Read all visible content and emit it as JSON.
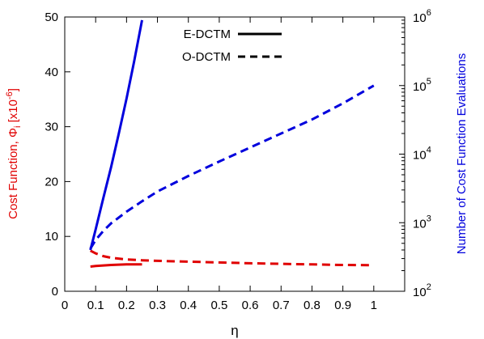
{
  "chart_data": {
    "type": "line",
    "title": "",
    "xlabel": "η",
    "ylabel_left": {
      "text": "Cost Function, Φ",
      "sub": "i",
      "unit": " [x10",
      "exp": "-6",
      "close": "]",
      "color": "#e00000"
    },
    "ylabel_right": {
      "text": "Number of Cost Function Evaluations",
      "color": "#0000dd"
    },
    "xlim": [
      0,
      1.1
    ],
    "ylim_left": [
      0,
      50
    ],
    "ylim_right": [
      100,
      1000000
    ],
    "right_scale": "log",
    "x_ticks": [
      0,
      0.1,
      0.2,
      0.3,
      0.4,
      0.5,
      0.6,
      0.7,
      0.8,
      0.9,
      1
    ],
    "x_tick_labels": [
      "0",
      "0.1",
      "0.2",
      "0.3",
      "0.4",
      "0.5",
      "0.6",
      "0.7",
      "0.8",
      "0.9",
      "1"
    ],
    "y_left_ticks": [
      0,
      10,
      20,
      30,
      40,
      50
    ],
    "y_left_tick_labels": [
      "0",
      "10",
      "20",
      "30",
      "40",
      "50"
    ],
    "y_right_ticks": [
      100,
      1000,
      10000,
      100000,
      1000000
    ],
    "y_right_tick_labels": [
      {
        "base": "10",
        "exp": "2"
      },
      {
        "base": "10",
        "exp": "3"
      },
      {
        "base": "10",
        "exp": "4"
      },
      {
        "base": "10",
        "exp": "5"
      },
      {
        "base": "10",
        "exp": "6"
      }
    ],
    "grid": false,
    "legend": {
      "position": "top-center",
      "entries": [
        {
          "label": "E-DCTM",
          "style": "solid"
        },
        {
          "label": "O-DCTM",
          "style": "dashed"
        }
      ]
    },
    "series": [
      {
        "method": "E-DCTM",
        "axis": "left",
        "color": "#e00000",
        "style": "solid",
        "x": [
          0.083,
          0.1,
          0.125,
          0.15,
          0.175,
          0.2,
          0.225,
          0.25
        ],
        "y": [
          4.5,
          4.6,
          4.7,
          4.8,
          4.85,
          4.9,
          4.9,
          4.9
        ]
      },
      {
        "method": "O-DCTM",
        "axis": "left",
        "color": "#e00000",
        "style": "dashed",
        "x": [
          0.083,
          0.1,
          0.125,
          0.15,
          0.2,
          0.25,
          0.3,
          0.4,
          0.5,
          0.6,
          0.7,
          0.8,
          0.9,
          1.0
        ],
        "y": [
          7.4,
          6.9,
          6.4,
          6.1,
          5.8,
          5.65,
          5.55,
          5.4,
          5.25,
          5.1,
          5.0,
          4.9,
          4.8,
          4.75
        ]
      },
      {
        "method": "E-DCTM",
        "axis": "right",
        "color": "#0000dd",
        "style": "solid",
        "x": [
          0.083,
          0.1,
          0.125,
          0.15,
          0.175,
          0.2,
          0.225,
          0.25
        ],
        "y": [
          400,
          800,
          2300,
          6500,
          20000,
          65000,
          230000,
          900000
        ]
      },
      {
        "method": "O-DCTM",
        "axis": "right",
        "color": "#0000dd",
        "style": "dashed",
        "x": [
          0.083,
          0.1,
          0.125,
          0.15,
          0.2,
          0.25,
          0.3,
          0.4,
          0.5,
          0.6,
          0.7,
          0.8,
          0.9,
          1.0
        ],
        "y": [
          420,
          560,
          760,
          980,
          1450,
          2050,
          2850,
          4800,
          7800,
          12500,
          20000,
          32000,
          55000,
          100000
        ]
      }
    ]
  }
}
